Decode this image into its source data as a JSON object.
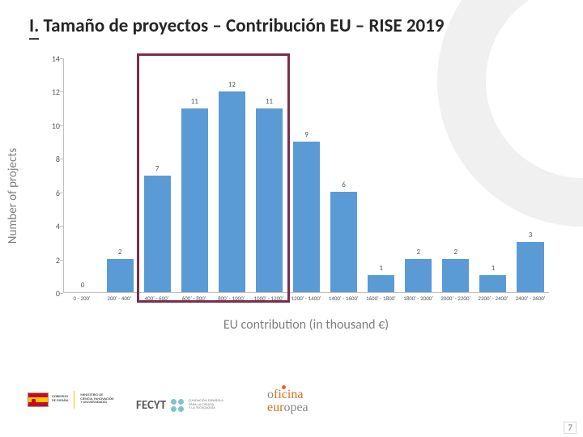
{
  "title": {
    "underlined": "I.",
    "rest": " Tamaño de proyectos – Contribución EU – RISE 2019"
  },
  "chart": {
    "type": "bar",
    "y_axis_title": "Number of projects",
    "x_axis_title": "EU contribution (in thousand €)",
    "ylim": [
      0,
      14
    ],
    "ytick_step": 2,
    "yticks": [
      0,
      2,
      4,
      6,
      8,
      10,
      12,
      14
    ],
    "categories": [
      "0 - 200'",
      "200' - 400'",
      "400' - 600'",
      "600' - 800'",
      "800' - 1000'",
      "1000' - 1200'",
      "1200' - 1400'",
      "1400' - 1600'",
      "1600' - 1800'",
      "1800' - 2000'",
      "2000' - 2200'",
      "2200' - 2400'",
      "2400' - 2600'"
    ],
    "values": [
      0,
      2,
      7,
      11,
      12,
      11,
      9,
      6,
      1,
      2,
      2,
      1,
      3
    ],
    "bar_color": "#5b9bd5",
    "axis_line_color": "#bfbfbf",
    "tick_label_color": "#595959",
    "axis_title_color": "#7f7f7f",
    "tick_label_fontsize": 9,
    "axis_title_fontsize": 16,
    "background_color": "#ffffff",
    "bar_width_ratio": 0.72,
    "highlight": {
      "color": "#7a2e4b",
      "from_index": 2,
      "to_index": 5
    }
  },
  "logos": {
    "gob": {
      "line1": "GOBIERNO",
      "line2": "DE ESPAÑA",
      "line3a": "MINISTERIO DE",
      "line3b": "CIENCIA, INNOVACIÓN",
      "line3c": "Y UNIVERSIDADES"
    },
    "fecyt": {
      "text": "FECYT",
      "sub1": "FUNDACIÓN ESPAÑOLA",
      "sub2": "PARA LA CIENCIA",
      "sub3": "Y LA TECNOLOGÍA"
    },
    "oe": {
      "l1a": "o",
      "l1b": "ficina",
      "l2a": "eur",
      "l2b": "opea"
    }
  },
  "page_number": "7"
}
